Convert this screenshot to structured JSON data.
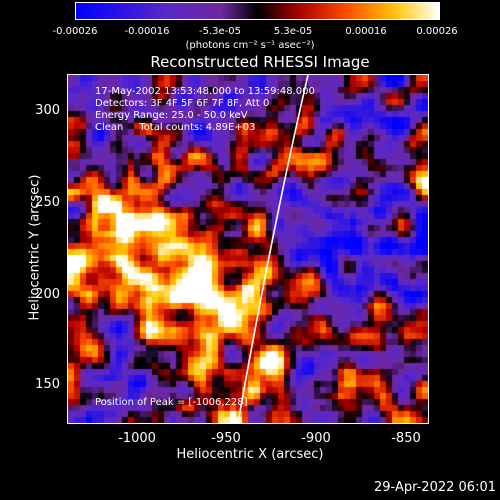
{
  "colorbar": {
    "ticks": [
      "-0.00026",
      "-0.00016",
      "-5.3e-05",
      "5.3e-05",
      "0.00016",
      "0.00026"
    ],
    "units": "(photons cm⁻² s⁻¹ asec⁻²)"
  },
  "title": "Reconstructed RHESSI Image",
  "info": {
    "time": "17-May-2002 13:53:48.000 to 13:59:48.000",
    "detectors": "Detectors: 3F 4F 5F 6F 7F 8F, Att 0",
    "energy": "Energy Range: 25.0 - 50.0 keV",
    "clean": "Clean     Total counts: 4.89E+03",
    "peak": "Position of Peak = [-1006,228]"
  },
  "axes": {
    "xlabel": "Heliocentric X (arcsec)",
    "ylabel": "Heliocentric Y (arcsec)",
    "xticks": [
      "-1000",
      "-950",
      "-900",
      "-850"
    ],
    "yticks": [
      "300",
      "250",
      "200",
      "150"
    ],
    "xlim": [
      -1037,
      -836
    ],
    "ylim": [
      128,
      322
    ]
  },
  "timestamp": "29-Apr-2022 06:01",
  "colors": {
    "background": "#000000",
    "text": "#ffffff",
    "limb": "#ffffff"
  }
}
